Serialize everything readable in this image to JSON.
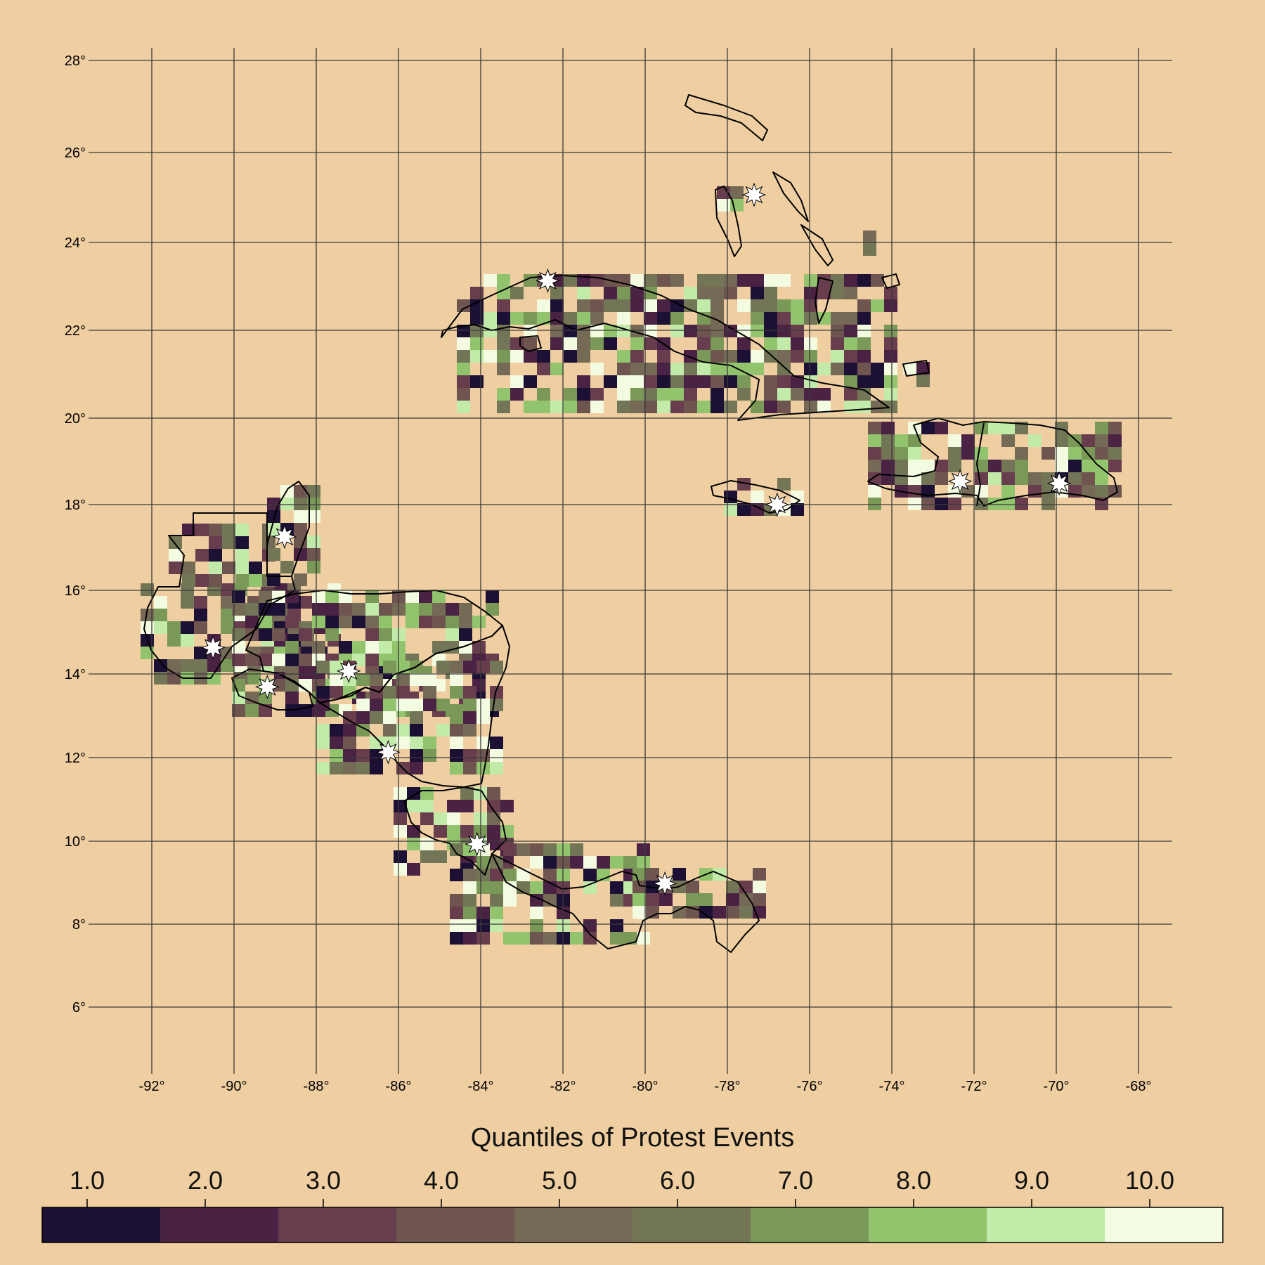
{
  "map": {
    "lat_labels": [
      "28°",
      "26°",
      "24°",
      "22°",
      "20°",
      "18°",
      "16°",
      "14°",
      "12°",
      "10°",
      "8°",
      "6°"
    ],
    "lon_labels": [
      "-92°",
      "-90°",
      "-88°",
      "-86°",
      "-84°",
      "-82°",
      "-80°",
      "-78°",
      "-76°",
      "-74°",
      "-72°",
      "-70°",
      "-68°"
    ],
    "lat_range": [
      5,
      28.5
    ],
    "lon_range": [
      -93.5,
      -66.5
    ],
    "colors": {
      "background": "#efcfa1",
      "grid": "#3a3a3a",
      "border": "#000000",
      "marker": "#ffffff"
    },
    "capitals": [
      {
        "name_icon": "star-icon",
        "lon": -77.35,
        "lat": 25.06
      },
      {
        "name_icon": "star-icon",
        "lon": -82.37,
        "lat": 23.13
      },
      {
        "name_icon": "star-icon",
        "lon": -72.34,
        "lat": 18.54
      },
      {
        "name_icon": "star-icon",
        "lon": -69.93,
        "lat": 18.49
      },
      {
        "name_icon": "star-icon",
        "lon": -76.79,
        "lat": 18.0
      },
      {
        "name_icon": "star-icon",
        "lon": -88.77,
        "lat": 17.25
      },
      {
        "name_icon": "star-icon",
        "lon": -90.51,
        "lat": 14.63
      },
      {
        "name_icon": "star-icon",
        "lon": -89.19,
        "lat": 13.69
      },
      {
        "name_icon": "star-icon",
        "lon": -87.21,
        "lat": 14.07
      },
      {
        "name_icon": "star-icon",
        "lon": -86.25,
        "lat": 12.13
      },
      {
        "name_icon": "star-icon",
        "lon": -84.09,
        "lat": 9.93
      },
      {
        "name_icon": "star-icon",
        "lon": -79.52,
        "lat": 8.98
      }
    ]
  },
  "legend": {
    "title": "Quantiles of Protest Events",
    "labels": [
      "1.0",
      "2.0",
      "3.0",
      "4.0",
      "5.0",
      "6.0",
      "7.0",
      "8.0",
      "9.0",
      "10.0"
    ],
    "colors": [
      "#1c1034",
      "#4a2243",
      "#683d4d",
      "#6e5550",
      "#746a56",
      "#737656",
      "#7a9858",
      "#91c46d",
      "#c2ebaa",
      "#f3fbe0"
    ]
  }
}
